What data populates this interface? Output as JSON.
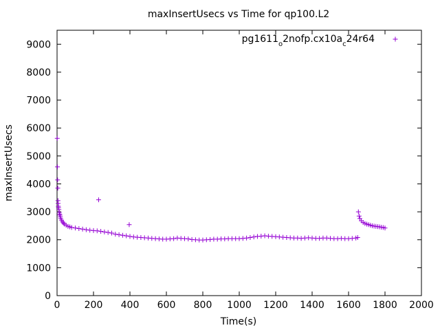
{
  "chart_data": {
    "type": "scatter",
    "title": "maxInsertUsecs vs Time for qp100.L2",
    "xlabel": "Time(s)",
    "ylabel": "maxInsertUsecs",
    "xlim": [
      0,
      2000
    ],
    "ylim": [
      0,
      9500
    ],
    "xticks": [
      0,
      200,
      400,
      600,
      800,
      1000,
      1200,
      1400,
      1600,
      1800,
      2000
    ],
    "yticks": [
      0,
      1000,
      2000,
      3000,
      4000,
      5000,
      6000,
      7000,
      8000,
      9000
    ],
    "grid": false,
    "legend_position": "top-right",
    "marker": "+",
    "series_color": "#9400d3",
    "series": [
      {
        "name": "pg1611_o2nofp.cx10a_c24r64",
        "legend_parts": [
          {
            "text": "pg1611",
            "sub": false
          },
          {
            "text": "o",
            "sub": true
          },
          {
            "text": "2nofp.cx10a",
            "sub": false
          },
          {
            "text": "c",
            "sub": true
          },
          {
            "text": "24r64",
            "sub": false
          }
        ],
        "points": [
          [
            1,
            5630
          ],
          [
            2,
            4610
          ],
          [
            3,
            4140
          ],
          [
            4,
            3850
          ],
          [
            5,
            3400
          ],
          [
            6,
            3300
          ],
          [
            7,
            3200
          ],
          [
            8,
            3150
          ],
          [
            10,
            3080
          ],
          [
            12,
            2980
          ],
          [
            14,
            2920
          ],
          [
            16,
            2880
          ],
          [
            18,
            2820
          ],
          [
            20,
            2760
          ],
          [
            25,
            2700
          ],
          [
            30,
            2640
          ],
          [
            35,
            2600
          ],
          [
            40,
            2560
          ],
          [
            50,
            2520
          ],
          [
            60,
            2480
          ],
          [
            70,
            2460
          ],
          [
            80,
            2440
          ],
          [
            100,
            2420
          ],
          [
            120,
            2400
          ],
          [
            140,
            2380
          ],
          [
            160,
            2360
          ],
          [
            180,
            2340
          ],
          [
            200,
            2330
          ],
          [
            220,
            2320
          ],
          [
            228,
            3430
          ],
          [
            240,
            2300
          ],
          [
            260,
            2280
          ],
          [
            280,
            2260
          ],
          [
            300,
            2240
          ],
          [
            320,
            2200
          ],
          [
            340,
            2180
          ],
          [
            360,
            2160
          ],
          [
            380,
            2140
          ],
          [
            396,
            2540
          ],
          [
            400,
            2120
          ],
          [
            420,
            2100
          ],
          [
            440,
            2090
          ],
          [
            460,
            2080
          ],
          [
            480,
            2070
          ],
          [
            500,
            2060
          ],
          [
            520,
            2050
          ],
          [
            540,
            2040
          ],
          [
            560,
            2030
          ],
          [
            580,
            2020
          ],
          [
            600,
            2020
          ],
          [
            620,
            2030
          ],
          [
            640,
            2040
          ],
          [
            660,
            2060
          ],
          [
            680,
            2050
          ],
          [
            700,
            2040
          ],
          [
            720,
            2030
          ],
          [
            740,
            2010
          ],
          [
            760,
            2000
          ],
          [
            780,
            1990
          ],
          [
            800,
            1990
          ],
          [
            820,
            2000
          ],
          [
            840,
            2010
          ],
          [
            860,
            2020
          ],
          [
            880,
            2020
          ],
          [
            900,
            2030
          ],
          [
            920,
            2030
          ],
          [
            940,
            2040
          ],
          [
            960,
            2040
          ],
          [
            980,
            2040
          ],
          [
            1000,
            2040
          ],
          [
            1020,
            2050
          ],
          [
            1040,
            2060
          ],
          [
            1060,
            2080
          ],
          [
            1080,
            2100
          ],
          [
            1100,
            2120
          ],
          [
            1120,
            2130
          ],
          [
            1140,
            2140
          ],
          [
            1160,
            2130
          ],
          [
            1180,
            2120
          ],
          [
            1200,
            2110
          ],
          [
            1220,
            2100
          ],
          [
            1240,
            2090
          ],
          [
            1260,
            2080
          ],
          [
            1280,
            2070
          ],
          [
            1300,
            2060
          ],
          [
            1320,
            2060
          ],
          [
            1340,
            2050
          ],
          [
            1360,
            2060
          ],
          [
            1380,
            2070
          ],
          [
            1400,
            2060
          ],
          [
            1420,
            2050
          ],
          [
            1440,
            2050
          ],
          [
            1460,
            2060
          ],
          [
            1480,
            2060
          ],
          [
            1500,
            2050
          ],
          [
            1520,
            2040
          ],
          [
            1540,
            2040
          ],
          [
            1560,
            2050
          ],
          [
            1580,
            2040
          ],
          [
            1600,
            2040
          ],
          [
            1620,
            2050
          ],
          [
            1640,
            2060
          ],
          [
            1650,
            2080
          ],
          [
            1654,
            3000
          ],
          [
            1658,
            2850
          ],
          [
            1662,
            2760
          ],
          [
            1670,
            2680
          ],
          [
            1680,
            2620
          ],
          [
            1690,
            2580
          ],
          [
            1700,
            2560
          ],
          [
            1710,
            2540
          ],
          [
            1720,
            2520
          ],
          [
            1730,
            2500
          ],
          [
            1740,
            2490
          ],
          [
            1750,
            2480
          ],
          [
            1760,
            2470
          ],
          [
            1770,
            2460
          ],
          [
            1780,
            2450
          ],
          [
            1790,
            2440
          ],
          [
            1800,
            2420
          ]
        ]
      }
    ]
  }
}
